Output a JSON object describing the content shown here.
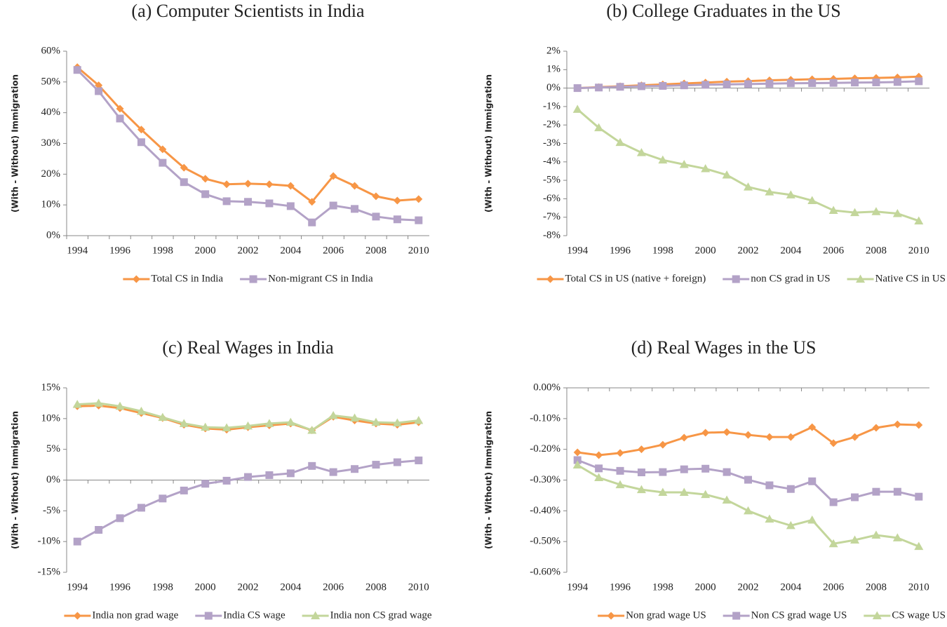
{
  "chart_data": [
    {
      "type": "line",
      "title": "(a) Computer Scientists in India",
      "y_label": "(With - Without) Immigration",
      "x": [
        1994,
        1995,
        1996,
        1997,
        1998,
        1999,
        2000,
        2001,
        2002,
        2003,
        2004,
        2005,
        2006,
        2007,
        2008,
        2009,
        2010
      ],
      "xlim": [
        1993.5,
        2010.5
      ],
      "xticks": [
        1994,
        1996,
        1998,
        2000,
        2002,
        2004,
        2006,
        2008,
        2010
      ],
      "ylim": [
        0,
        60
      ],
      "yticks": [
        {
          "value": 0,
          "label": "0%"
        },
        {
          "value": 10,
          "label": "10%"
        },
        {
          "value": 20,
          "label": "20%"
        },
        {
          "value": 30,
          "label": "30%"
        },
        {
          "value": 40,
          "label": "40%"
        },
        {
          "value": 50,
          "label": "50%"
        },
        {
          "value": 60,
          "label": "60%"
        }
      ],
      "grid": false,
      "legend": "bottom",
      "series": [
        {
          "name": "Total CS in India",
          "color": "#f79646",
          "marker": "diamond",
          "values": [
            54.8,
            48.9,
            41.3,
            34.5,
            28.1,
            22.1,
            18.5,
            16.7,
            16.9,
            16.7,
            16.2,
            11.0,
            19.4,
            16.2,
            12.8,
            11.4,
            11.9
          ]
        },
        {
          "name": "Non-migrant CS in India",
          "color": "#b3a2c7",
          "marker": "square",
          "values": [
            53.9,
            47.0,
            38.1,
            30.4,
            23.7,
            17.4,
            13.5,
            11.2,
            11.0,
            10.5,
            9.6,
            4.3,
            9.8,
            8.7,
            6.2,
            5.3,
            5.0
          ]
        }
      ]
    },
    {
      "type": "line",
      "title": "(b) College Graduates in the US",
      "y_label": "(With - Without) Immigration",
      "x": [
        1994,
        1995,
        1996,
        1997,
        1998,
        1999,
        2000,
        2001,
        2002,
        2003,
        2004,
        2005,
        2006,
        2007,
        2008,
        2009,
        2010
      ],
      "xlim": [
        1993.5,
        2010.5
      ],
      "xticks": [
        1994,
        1996,
        1998,
        2000,
        2002,
        2004,
        2006,
        2008,
        2010
      ],
      "ylim": [
        -8,
        2
      ],
      "yticks": [
        {
          "value": -8,
          "label": "-8%"
        },
        {
          "value": -7,
          "label": "-7%"
        },
        {
          "value": -6,
          "label": "-6%"
        },
        {
          "value": -5,
          "label": "-5%"
        },
        {
          "value": -4,
          "label": "-4%"
        },
        {
          "value": -3,
          "label": "-3%"
        },
        {
          "value": -2,
          "label": "-2%"
        },
        {
          "value": -1,
          "label": "-1%"
        },
        {
          "value": 0,
          "label": "0%"
        },
        {
          "value": 1,
          "label": "1%"
        },
        {
          "value": 2,
          "label": "2%"
        }
      ],
      "grid": false,
      "legend": "bottom",
      "series": [
        {
          "name": "Total CS in US (native + foreign)",
          "color": "#f79646",
          "marker": "diamond",
          "values": [
            0,
            0.05,
            0.1,
            0.15,
            0.2,
            0.25,
            0.3,
            0.35,
            0.38,
            0.42,
            0.45,
            0.48,
            0.5,
            0.53,
            0.55,
            0.58,
            0.62
          ]
        },
        {
          "name": "non CS grad in US",
          "color": "#b3a2c7",
          "marker": "square",
          "values": [
            0,
            0.03,
            0.07,
            0.1,
            0.12,
            0.15,
            0.18,
            0.2,
            0.22,
            0.24,
            0.26,
            0.27,
            0.28,
            0.3,
            0.31,
            0.33,
            0.37
          ]
        },
        {
          "name": "Native CS in US",
          "color": "#c3d69b",
          "marker": "triangle",
          "values": [
            -1.15,
            -2.15,
            -2.95,
            -3.5,
            -3.9,
            -4.14,
            -4.37,
            -4.71,
            -5.36,
            -5.63,
            -5.79,
            -6.1,
            -6.63,
            -6.75,
            -6.7,
            -6.8,
            -7.2
          ]
        }
      ]
    },
    {
      "type": "line",
      "title": "(c) Real Wages in India",
      "y_label": "(With - Without) Immigration",
      "x": [
        1994,
        1995,
        1996,
        1997,
        1998,
        1999,
        2000,
        2001,
        2002,
        2003,
        2004,
        2005,
        2006,
        2007,
        2008,
        2009,
        2010
      ],
      "xlim": [
        1993.5,
        2010.5
      ],
      "xticks": [
        1994,
        1996,
        1998,
        2000,
        2002,
        2004,
        2006,
        2008,
        2010
      ],
      "ylim": [
        -15,
        15
      ],
      "yticks": [
        {
          "value": -15,
          "label": "-15%"
        },
        {
          "value": -10,
          "label": "-10%"
        },
        {
          "value": -5,
          "label": "-5%"
        },
        {
          "value": 0,
          "label": "0%"
        },
        {
          "value": 5,
          "label": "5%"
        },
        {
          "value": 10,
          "label": "10%"
        },
        {
          "value": 15,
          "label": "15%"
        }
      ],
      "grid": false,
      "legend": "bottom",
      "series": [
        {
          "name": "India non grad wage",
          "color": "#f79646",
          "marker": "diamond",
          "values": [
            12.0,
            12.1,
            11.7,
            10.9,
            10.1,
            9.0,
            8.4,
            8.2,
            8.6,
            8.9,
            9.2,
            8.1,
            10.3,
            9.7,
            9.2,
            9.0,
            9.4
          ]
        },
        {
          "name": "India CS wage",
          "color": "#b3a2c7",
          "marker": "square",
          "values": [
            -10.0,
            -8.1,
            -6.2,
            -4.5,
            -3.0,
            -1.7,
            -0.6,
            -0.1,
            0.5,
            0.8,
            1.1,
            2.3,
            1.3,
            1.8,
            2.5,
            2.9,
            3.2
          ]
        },
        {
          "name": "India non CS grad wage",
          "color": "#c3d69b",
          "marker": "triangle",
          "values": [
            12.3,
            12.5,
            12.0,
            11.2,
            10.2,
            9.2,
            8.6,
            8.5,
            8.8,
            9.2,
            9.4,
            8.1,
            10.5,
            10.1,
            9.4,
            9.3,
            9.7
          ]
        }
      ]
    },
    {
      "type": "line",
      "title": "(d) Real Wages in the US",
      "y_label": "(With - Without) Immigration",
      "x": [
        1994,
        1995,
        1996,
        1997,
        1998,
        1999,
        2000,
        2001,
        2002,
        2003,
        2004,
        2005,
        2006,
        2007,
        2008,
        2009,
        2010
      ],
      "xlim": [
        1993.5,
        2010.5
      ],
      "xticks": [
        1994,
        1996,
        1998,
        2000,
        2002,
        2004,
        2006,
        2008,
        2010
      ],
      "ylim": [
        -0.6,
        0
      ],
      "yticks": [
        {
          "value": -0.6,
          "label": "-0.60%"
        },
        {
          "value": -0.5,
          "label": "-0.50%"
        },
        {
          "value": -0.4,
          "label": "-0.40%"
        },
        {
          "value": -0.3,
          "label": "-0.30%"
        },
        {
          "value": -0.2,
          "label": "-0.20%"
        },
        {
          "value": -0.1,
          "label": "-0.10%"
        },
        {
          "value": 0,
          "label": "0.00%"
        }
      ],
      "grid": false,
      "legend": "bottom",
      "series": [
        {
          "name": "Non grad wage US",
          "color": "#f79646",
          "marker": "diamond",
          "values": [
            -0.21,
            -0.219,
            -0.212,
            -0.2,
            -0.185,
            -0.162,
            -0.146,
            -0.144,
            -0.153,
            -0.16,
            -0.16,
            -0.128,
            -0.18,
            -0.16,
            -0.13,
            -0.119,
            -0.121
          ]
        },
        {
          "name": "Non CS grad wage US",
          "color": "#b3a2c7",
          "marker": "square",
          "values": [
            -0.235,
            -0.262,
            -0.27,
            -0.275,
            -0.274,
            -0.265,
            -0.263,
            -0.274,
            -0.299,
            -0.317,
            -0.329,
            -0.304,
            -0.372,
            -0.356,
            -0.338,
            -0.338,
            -0.354
          ]
        },
        {
          "name": "CS wage US",
          "color": "#c3d69b",
          "marker": "triangle",
          "values": [
            -0.251,
            -0.292,
            -0.315,
            -0.331,
            -0.34,
            -0.34,
            -0.347,
            -0.365,
            -0.4,
            -0.427,
            -0.448,
            -0.43,
            -0.507,
            -0.495,
            -0.479,
            -0.488,
            -0.516
          ]
        }
      ]
    }
  ]
}
